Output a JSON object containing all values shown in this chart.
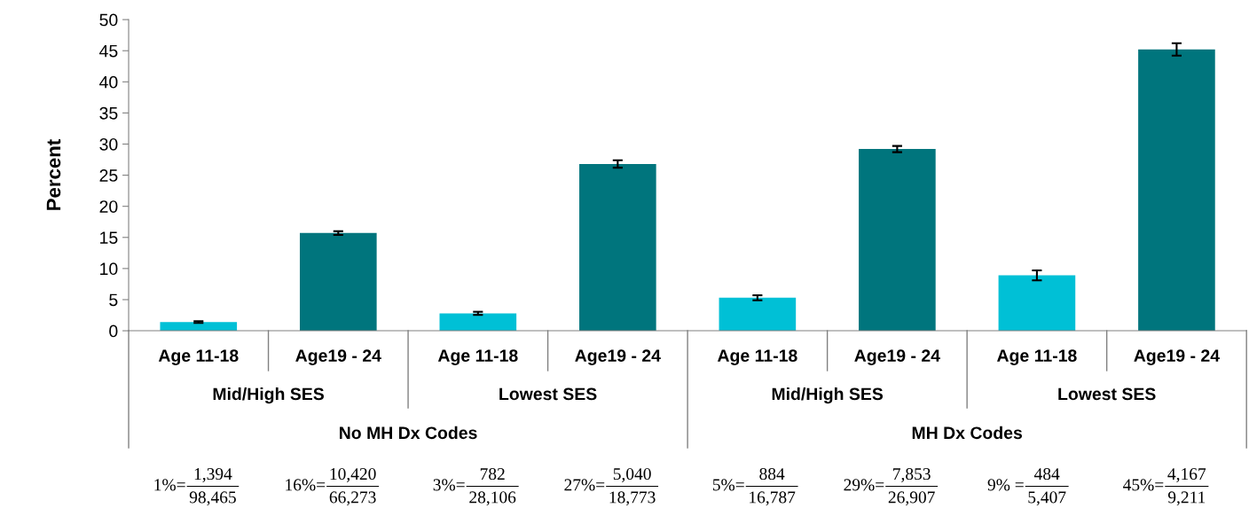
{
  "chart_data": {
    "type": "bar",
    "ylabel": "Percent",
    "categories": [
      "Age 11-18",
      "Age19 - 24",
      "Age 11-18",
      "Age19 - 24",
      "Age 11-18",
      "Age19 - 24",
      "Age 11-18",
      "Age19 - 24"
    ],
    "values": [
      1.4,
      15.7,
      2.8,
      26.8,
      5.3,
      29.2,
      8.9,
      45.2
    ],
    "errors": [
      0.15,
      0.3,
      0.25,
      0.6,
      0.4,
      0.5,
      0.8,
      1.0
    ],
    "colors": [
      "#00c0d6",
      "#00757d",
      "#00c0d6",
      "#00757d",
      "#00c0d6",
      "#00757d",
      "#00c0d6",
      "#00757d"
    ],
    "ylim": [
      0,
      50
    ],
    "yticks": [
      0,
      5,
      10,
      15,
      20,
      25,
      30,
      35,
      40,
      45,
      50
    ],
    "grid": false,
    "legend": false,
    "annotations": [
      "Mid/High SES",
      "Lowest SES",
      "Mid/High SES",
      "Lowest SES",
      "No MH Dx Codes",
      "MH Dx Codes",
      "1%=",
      "1,394",
      "98,465",
      "16%=",
      "10,420",
      "66,273",
      "3%=",
      "782",
      "28,106",
      "27%=",
      "5,040",
      "18,773",
      "5%=",
      "884",
      "16,787",
      "29%=",
      "7,853",
      "26,907",
      "9% =",
      "484",
      "5,407",
      "45%=",
      "4,167",
      "9,211"
    ]
  }
}
